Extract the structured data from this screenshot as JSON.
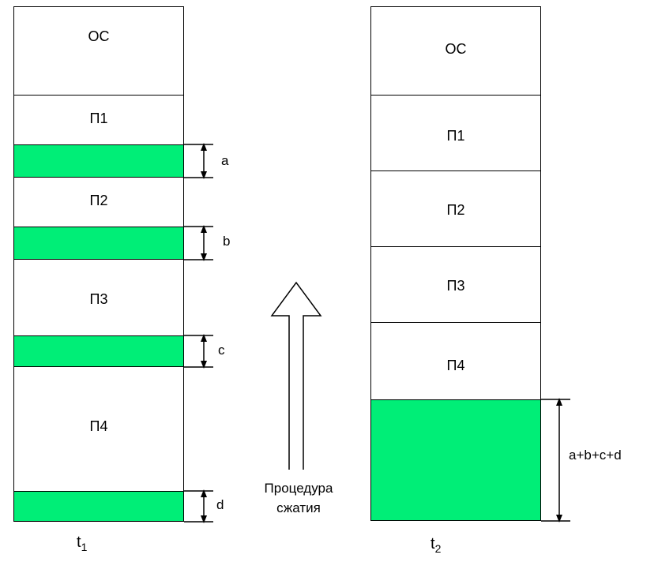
{
  "left_column": {
    "blocks": [
      "ОС",
      "П1",
      "П2",
      "П3",
      "П4"
    ],
    "gaps": [
      "a",
      "b",
      "c",
      "d"
    ],
    "time_label": "t",
    "time_sub": "1"
  },
  "right_column": {
    "blocks": [
      "ОС",
      "П1",
      "П2",
      "П3",
      "П4"
    ],
    "gap_total": "a+b+c+d",
    "time_label": "t",
    "time_sub": "2"
  },
  "arrow_caption": [
    "Процедура",
    "сжатия"
  ],
  "colors": {
    "free_memory": "#00ee77",
    "border": "#000000"
  }
}
